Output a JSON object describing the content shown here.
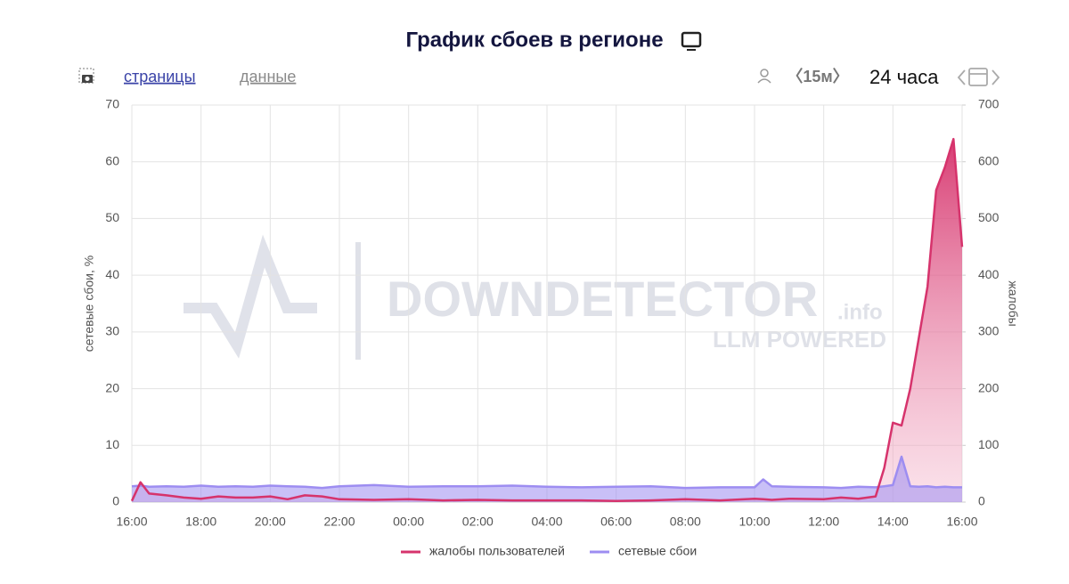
{
  "chart_data": {
    "type": "area",
    "title": "График сбоев в регионе",
    "ylabel": "сетевые сбои, %",
    "y2label": "жалобы",
    "x": [
      0,
      0.25,
      0.5,
      1,
      1.5,
      2,
      2.5,
      3,
      3.5,
      4,
      4.5,
      5,
      5.5,
      6,
      7,
      8,
      9,
      10,
      11,
      12,
      13,
      14,
      15,
      16,
      17,
      18,
      18.25,
      18.5,
      19,
      20,
      20.5,
      21,
      21.5,
      21.75,
      22,
      22.25,
      22.5,
      22.75,
      23,
      23.25,
      23.5,
      23.75,
      24
    ],
    "xlim": [
      0,
      24
    ],
    "xticks": [
      {
        "value": 0,
        "label": "16:00"
      },
      {
        "value": 2,
        "label": "18:00"
      },
      {
        "value": 4,
        "label": "20:00"
      },
      {
        "value": 6,
        "label": "22:00"
      },
      {
        "value": 8,
        "label": "00:00"
      },
      {
        "value": 10,
        "label": "02:00"
      },
      {
        "value": 12,
        "label": "04:00"
      },
      {
        "value": 14,
        "label": "06:00"
      },
      {
        "value": 16,
        "label": "08:00"
      },
      {
        "value": 18,
        "label": "10:00"
      },
      {
        "value": 20,
        "label": "12:00"
      },
      {
        "value": 22,
        "label": "14:00"
      },
      {
        "value": 24,
        "label": "16:00"
      }
    ],
    "ylim": [
      0,
      70
    ],
    "yticks": [
      0,
      10,
      20,
      30,
      40,
      50,
      60,
      70
    ],
    "y2lim": [
      0,
      700
    ],
    "y2ticks": [
      0,
      100,
      200,
      300,
      400,
      500,
      600,
      700
    ],
    "grid": true,
    "series": [
      {
        "name": "жалобы пользователей",
        "color": "#d6336c",
        "axis": "y2",
        "values": [
          2,
          35,
          15,
          12,
          8,
          6,
          10,
          8,
          8,
          10,
          5,
          12,
          10,
          5,
          4,
          5,
          3,
          4,
          3,
          3,
          3,
          2,
          3,
          5,
          3,
          6,
          5,
          4,
          6,
          5,
          8,
          6,
          10,
          60,
          140,
          135,
          200,
          290,
          380,
          550,
          590,
          640,
          450
        ]
      },
      {
        "name": "сетевые сбои",
        "color": "#9d8df1",
        "values": [
          2.8,
          2.9,
          2.7,
          2.8,
          2.7,
          2.9,
          2.7,
          2.8,
          2.7,
          2.9,
          2.8,
          2.7,
          2.5,
          2.8,
          3.0,
          2.7,
          2.8,
          2.8,
          2.9,
          2.7,
          2.6,
          2.7,
          2.8,
          2.5,
          2.6,
          2.6,
          4.0,
          2.8,
          2.7,
          2.6,
          2.5,
          2.7,
          2.6,
          2.8,
          3.0,
          8.0,
          2.8,
          2.7,
          2.8,
          2.6,
          2.7,
          2.6,
          2.6
        ]
      }
    ]
  },
  "controls": {
    "tab_pages": "страницы",
    "tab_data": "данные",
    "interval": "〈15м〉",
    "period": "24 часа"
  },
  "watermark": {
    "brand": "DOWNDETECTOR",
    "domain": ".info",
    "tagline": "LLM POWERED"
  }
}
